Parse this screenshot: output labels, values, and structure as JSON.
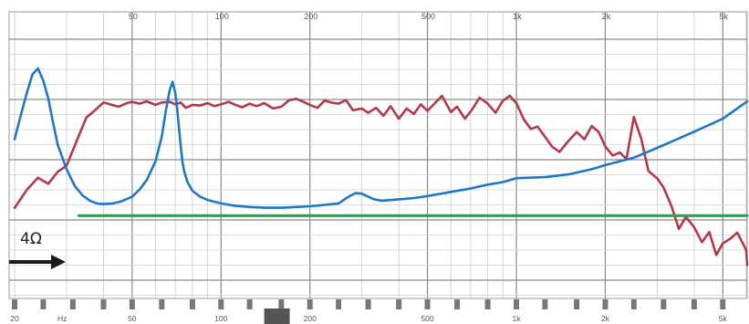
{
  "chart_data": {
    "type": "line",
    "xscale": "log",
    "xlim": [
      20,
      6300
    ],
    "grid": true,
    "top_tick_labels": [
      "50",
      "100",
      "200",
      "500",
      "1k",
      "2k",
      "5k"
    ],
    "bottom_tick_labels": [
      "20",
      "Hz",
      "50",
      "100",
      "200",
      "500",
      "1k",
      "2k",
      "5k"
    ],
    "annotation": "4Ω",
    "series": [
      {
        "role": "frequency response",
        "color": "#b03a48",
        "x": [
          20,
          22,
          24,
          26,
          28,
          30,
          33,
          35,
          37,
          40,
          42,
          45,
          48,
          50,
          53,
          56,
          60,
          63,
          67,
          70,
          73,
          76,
          80,
          85,
          90,
          95,
          100,
          106,
          112,
          118,
          125,
          132,
          140,
          150,
          160,
          170,
          180,
          190,
          200,
          212,
          224,
          236,
          250,
          265,
          280,
          300,
          315,
          335,
          355,
          375,
          400,
          425,
          450,
          475,
          500,
          530,
          560,
          600,
          630,
          670,
          710,
          750,
          800,
          850,
          900,
          950,
          1000,
          1060,
          1120,
          1180,
          1250,
          1320,
          1400,
          1500,
          1600,
          1700,
          1800,
          1900,
          2000,
          2120,
          2240,
          2360,
          2500,
          2650,
          2800,
          3000,
          3150,
          3350,
          3550,
          3750,
          4000,
          4250,
          4500,
          4750,
          5000,
          5300,
          5600,
          6000,
          6300
        ],
        "y": [
          72,
          75,
          77,
          76,
          78,
          79,
          84,
          87,
          88,
          89.5,
          89.2,
          88.8,
          89.4,
          89.6,
          89.3,
          89.7,
          89.1,
          89.5,
          89.6,
          89.2,
          89.5,
          88.6,
          89.1,
          89,
          89.4,
          88.9,
          89.2,
          89.6,
          89.1,
          88.7,
          89.3,
          88.9,
          89.4,
          88.5,
          88.8,
          89.9,
          90.1,
          89.6,
          89.1,
          88.6,
          89.8,
          89.5,
          89.3,
          89.9,
          88.2,
          88.5,
          87.8,
          88.6,
          87.3,
          88.9,
          86.8,
          88.5,
          87.6,
          89.2,
          88.1,
          89.4,
          90.6,
          87.9,
          88.8,
          86.8,
          88.4,
          90.3,
          89.3,
          87.8,
          89.8,
          90.6,
          89.4,
          86.7,
          85.1,
          85.5,
          83.8,
          82.2,
          81.3,
          83.1,
          84.6,
          83.4,
          85.6,
          84.6,
          82.2,
          80.7,
          81.2,
          80.1,
          87.1,
          83.4,
          78.1,
          76.9,
          75.4,
          72.3,
          68.5,
          70.5,
          68.8,
          66.3,
          68,
          64.2,
          66.1,
          66.9,
          67.9,
          65,
          62.5
        ]
      },
      {
        "role": "impedance",
        "color": "#1e78c8",
        "x": [
          20,
          21,
          22,
          23,
          24,
          25,
          26,
          27,
          28,
          30,
          32,
          34,
          36,
          38,
          40,
          43,
          46,
          50,
          53,
          56,
          60,
          63,
          65,
          67,
          68.5,
          70,
          71,
          72,
          73,
          74,
          75,
          77,
          80,
          85,
          90,
          100,
          110,
          125,
          140,
          160,
          180,
          200,
          225,
          250,
          270,
          285,
          300,
          315,
          330,
          350,
          400,
          450,
          500,
          600,
          700,
          800,
          900,
          1000,
          1250,
          1500,
          1800,
          2000,
          2500,
          3000,
          3500,
          4000,
          5000,
          6300
        ],
        "y": [
          12.5,
          18,
          25,
          33,
          36,
          30,
          23,
          16,
          11.5,
          8,
          6.2,
          5.4,
          5,
          4.8,
          4.75,
          4.8,
          4.95,
          5.3,
          5.9,
          6.8,
          9,
          13,
          19,
          26,
          29.5,
          25,
          20,
          15,
          11.5,
          9,
          7.8,
          6.6,
          5.8,
          5.3,
          5.05,
          4.8,
          4.65,
          4.55,
          4.5,
          4.5,
          4.55,
          4.6,
          4.7,
          4.8,
          5.3,
          5.6,
          5.55,
          5.3,
          5.1,
          5.0,
          5.1,
          5.2,
          5.35,
          5.7,
          6.0,
          6.35,
          6.6,
          7.0,
          7.1,
          7.4,
          8.0,
          8.5,
          9.5,
          11.0,
          12.5,
          14.0,
          17.0,
          22
        ]
      },
      {
        "role": "4Ω reference",
        "color": "#22a84a",
        "x": [
          33,
          6300
        ],
        "y": [
          4,
          4
        ]
      }
    ]
  }
}
